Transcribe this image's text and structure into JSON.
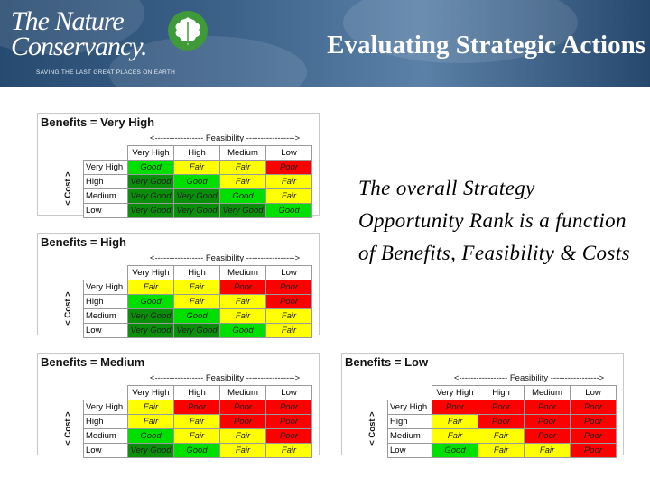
{
  "header": {
    "logo_line1": "The Nature",
    "logo_line2": "Conservancy.",
    "tagline": "SAVING THE LAST GREAT PLACES ON EARTH",
    "logo_icon": "oak-leaf-icon",
    "title": "Evaluating Strategic Actions"
  },
  "side_text": "The overall Strategy Opportunity Rank is a function of Benefits, Feasibility & Costs",
  "labels": {
    "feasibility_axis": "<----------------- Feasibility ----------------->",
    "cost_axis": "< Cost >",
    "columns": [
      "Very High",
      "High",
      "Medium",
      "Low"
    ],
    "rows": [
      "Very High",
      "High",
      "Medium",
      "Low"
    ]
  },
  "colors": {
    "Very Good": "#0a8f0a",
    "Good": "#00e000",
    "Fair": "#ffff00",
    "Poor": "#ff0000"
  },
  "matrices": [
    {
      "title": "Benefits = Very High",
      "cells": [
        [
          "Good",
          "Fair",
          "Fair",
          "Poor"
        ],
        [
          "Very Good",
          "Good",
          "Fair",
          "Fair"
        ],
        [
          "Very Good",
          "Very Good",
          "Good",
          "Fair"
        ],
        [
          "Very Good",
          "Very Good",
          "Very Good",
          "Good"
        ]
      ]
    },
    {
      "title": "Benefits = High",
      "cells": [
        [
          "Fair",
          "Fair",
          "Poor",
          "Poor"
        ],
        [
          "Good",
          "Fair",
          "Fair",
          "Poor"
        ],
        [
          "Very Good",
          "Good",
          "Fair",
          "Fair"
        ],
        [
          "Very Good",
          "Very Good",
          "Good",
          "Fair"
        ]
      ]
    },
    {
      "title": "Benefits = Medium",
      "cells": [
        [
          "Fair",
          "Poor",
          "Poor",
          "Poor"
        ],
        [
          "Fair",
          "Fair",
          "Poor",
          "Poor"
        ],
        [
          "Good",
          "Fair",
          "Fair",
          "Poor"
        ],
        [
          "Very Good",
          "Good",
          "Fair",
          "Fair"
        ]
      ]
    },
    {
      "title": "Benefits = Low",
      "cells": [
        [
          "Poor",
          "Poor",
          "Poor",
          "Poor"
        ],
        [
          "Fair",
          "Poor",
          "Poor",
          "Poor"
        ],
        [
          "Fair",
          "Fair",
          "Poor",
          "Poor"
        ],
        [
          "Good",
          "Fair",
          "Fair",
          "Poor"
        ]
      ]
    }
  ]
}
